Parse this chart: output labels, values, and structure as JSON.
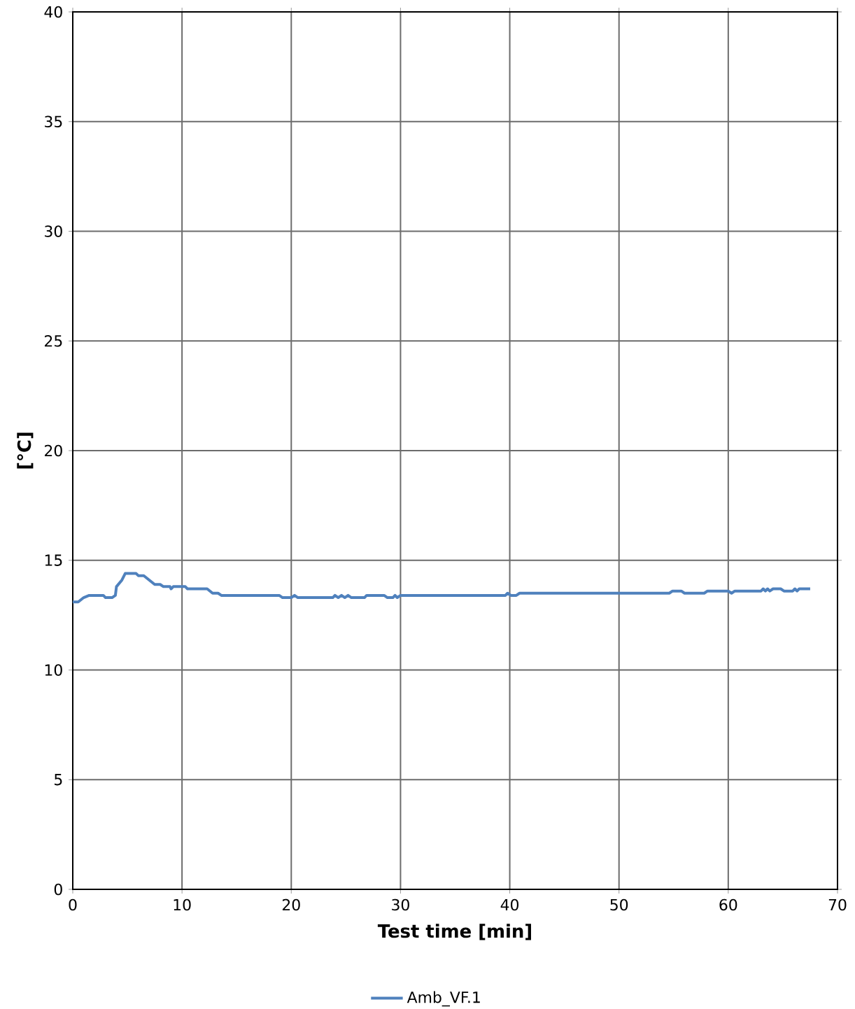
{
  "chart_data": {
    "type": "line",
    "xlabel": "Test time [min]",
    "ylabel": "[°C]",
    "x": [
      0,
      0.5,
      1,
      1.5,
      2.8,
      3,
      3.6,
      3.9,
      4,
      4.5,
      4.8,
      5.8,
      6,
      6.5,
      7,
      7.5,
      8,
      8.3,
      8.9,
      9,
      9.2,
      10.3,
      10.5,
      12.3,
      12.8,
      13.3,
      13.6,
      18.9,
      19.2,
      20,
      20.3,
      20.6,
      23.8,
      24,
      24.3,
      24.6,
      24.9,
      25.2,
      25.5,
      26.7,
      26.9,
      28.5,
      28.8,
      29.3,
      29.5,
      29.7,
      30,
      39.6,
      39.8,
      40.1,
      40.6,
      40.9,
      54.6,
      54.9,
      55.7,
      56,
      57.8,
      58.1,
      60,
      60.3,
      60.6,
      63,
      63.2,
      63.4,
      63.6,
      63.8,
      64.1,
      64.8,
      65.1,
      65.9,
      66.1,
      66.3,
      66.5,
      67.5
    ],
    "series": [
      {
        "name": "Amb_VF.1",
        "color": "#4f81bd",
        "values": [
          13.1,
          13.1,
          13.3,
          13.4,
          13.4,
          13.3,
          13.3,
          13.4,
          13.8,
          14.1,
          14.4,
          14.4,
          14.3,
          14.3,
          14.1,
          13.9,
          13.9,
          13.8,
          13.8,
          13.7,
          13.8,
          13.8,
          13.7,
          13.7,
          13.5,
          13.5,
          13.4,
          13.4,
          13.3,
          13.3,
          13.4,
          13.3,
          13.3,
          13.4,
          13.3,
          13.4,
          13.3,
          13.4,
          13.3,
          13.3,
          13.4,
          13.4,
          13.3,
          13.3,
          13.4,
          13.3,
          13.4,
          13.4,
          13.5,
          13.4,
          13.4,
          13.5,
          13.5,
          13.6,
          13.6,
          13.5,
          13.5,
          13.6,
          13.6,
          13.5,
          13.6,
          13.6,
          13.7,
          13.6,
          13.7,
          13.6,
          13.7,
          13.7,
          13.6,
          13.6,
          13.7,
          13.6,
          13.7,
          13.7
        ]
      }
    ],
    "xlim": [
      0,
      70
    ],
    "ylim": [
      0,
      40
    ],
    "xticks": [
      0,
      10,
      20,
      30,
      40,
      50,
      60,
      70
    ],
    "yticks": [
      0,
      5,
      10,
      15,
      20,
      25,
      30,
      35,
      40
    ],
    "grid": true,
    "legend": "bottom"
  }
}
